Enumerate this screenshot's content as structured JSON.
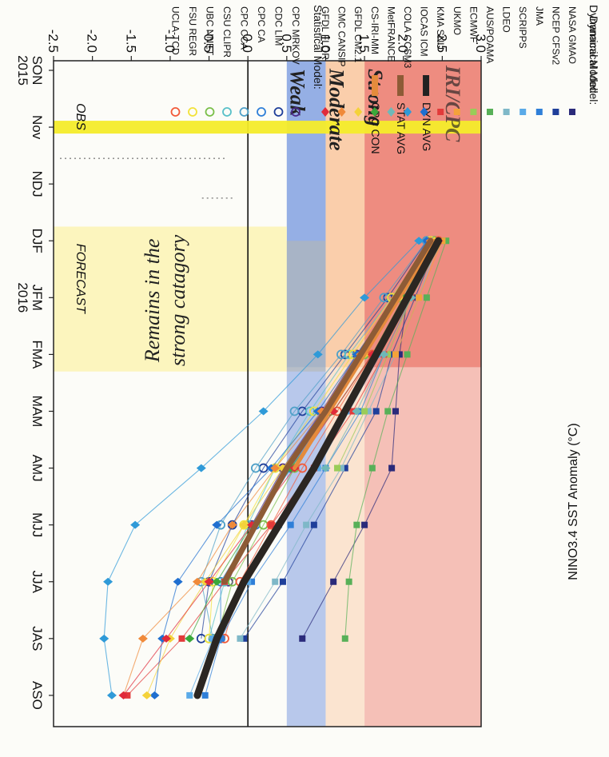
{
  "chart_data": {
    "type": "line",
    "ylabel": "NINO3.4 SST Anomaly (°C)",
    "x_ticks": [
      "SON",
      "Nov",
      "NDJ",
      "DJF",
      "JFM",
      "FMA",
      "MAM",
      "AMJ",
      "MJJ",
      "JJA",
      "JAS",
      "ASO"
    ],
    "year_labels": [
      {
        "x": "SON",
        "text": "2015"
      },
      {
        "x": "JFM",
        "text": "2016"
      }
    ],
    "ylim": [
      -2.5,
      3.0
    ],
    "y_ticks": [
      "3.0",
      "2.5",
      "2.0",
      "1.5",
      "1.0",
      "0.5",
      "0.0",
      "-0.5",
      "-1.0",
      "-1.5",
      "-2.0",
      "-2.5"
    ],
    "bands": [
      {
        "label": "Strong",
        "from": 1.5,
        "to": 3.0,
        "color": "#ec7f72"
      },
      {
        "label": "Moderate",
        "from": 1.0,
        "to": 1.5,
        "color": "#f9c9a2"
      },
      {
        "label": "Weak",
        "from": 0.5,
        "to": 1.0,
        "color": "#8aa6e2"
      }
    ],
    "obs_marker": {
      "x": "Nov",
      "label": "OBS"
    },
    "forecast_label": "FORECAST",
    "annotation": [
      "Remains in the",
      "strong catagory"
    ],
    "logo": "IRI/CPC",
    "avg_legend": [
      {
        "label": "DYN AVG",
        "color": "#222222"
      },
      {
        "label": "STAT AVG",
        "color": "#8d5b36"
      },
      {
        "label": "CPC CON",
        "color": "#e58b3c"
      }
    ],
    "dynamical_header": "Dynamical Model:",
    "statistical_header": "Statistical Model:",
    "dynamical_models": [
      {
        "name": "NASA GMAO",
        "color": "#2a2a7a",
        "marker": "square",
        "values": [
          null,
          null,
          null,
          2.35,
          2.05,
          1.95,
          1.9,
          1.85,
          1.5,
          1.1,
          0.7,
          null
        ]
      },
      {
        "name": "NCEP CFSv2",
        "color": "#1f3f9a",
        "marker": "square",
        "values": [
          null,
          null,
          null,
          2.45,
          2.15,
          1.85,
          1.65,
          1.25,
          0.85,
          0.45,
          -0.05,
          null
        ]
      },
      {
        "name": "JMA",
        "color": "#2f7fd8",
        "marker": "square",
        "values": [
          null,
          null,
          null,
          2.5,
          2.1,
          1.75,
          1.45,
          1.0,
          0.55,
          0.05,
          -0.35,
          -0.55
        ]
      },
      {
        "name": "SCRIPPS",
        "color": "#5aaae8",
        "marker": "square",
        "values": [
          null,
          null,
          null,
          2.4,
          2.0,
          1.7,
          1.3,
          0.9,
          0.4,
          0.0,
          -0.45,
          -0.75
        ]
      },
      {
        "name": "LDEO",
        "color": "#7fb8c8",
        "marker": "square",
        "values": [
          null,
          null,
          null,
          2.45,
          2.2,
          1.9,
          1.55,
          1.2,
          0.75,
          0.35,
          -0.1,
          null
        ]
      },
      {
        "name": "AUS/POAMA",
        "color": "#58b058",
        "marker": "square",
        "values": [
          null,
          null,
          null,
          2.55,
          2.3,
          2.05,
          1.8,
          1.6,
          1.4,
          1.3,
          1.25,
          null
        ]
      },
      {
        "name": "ECMWF",
        "color": "#9acc58",
        "marker": "square",
        "values": [
          null,
          null,
          null,
          2.5,
          2.1,
          1.8,
          1.5,
          1.15,
          null,
          null,
          null,
          null
        ]
      },
      {
        "name": "UKMO",
        "color": "#f4a23a",
        "marker": "square",
        "values": [
          null,
          null,
          null,
          2.5,
          2.2,
          1.9,
          null,
          null,
          null,
          null,
          null,
          null
        ]
      },
      {
        "name": "KMA SNU",
        "color": "#e23a3a",
        "marker": "square",
        "values": [
          null,
          null,
          null,
          2.45,
          2.1,
          1.75,
          1.35,
          0.85,
          0.3,
          -0.3,
          -0.85,
          -1.55
        ]
      },
      {
        "name": "IOCAS ICM",
        "color": "#1f6fd0",
        "marker": "diamond",
        "values": [
          null,
          null,
          null,
          2.3,
          1.9,
          1.4,
          0.9,
          0.3,
          -0.4,
          -0.9,
          -1.1,
          -1.2
        ]
      },
      {
        "name": "COLA CCSM3",
        "color": "#2f9ad8",
        "marker": "diamond",
        "values": [
          null,
          null,
          null,
          2.2,
          1.5,
          0.9,
          0.2,
          -0.6,
          -1.45,
          -1.8,
          -1.85,
          -1.75
        ]
      },
      {
        "name": "MetFRANCE",
        "color": "#6fb8b8",
        "marker": "diamond",
        "values": [
          null,
          null,
          null,
          2.45,
          2.1,
          1.75,
          1.4,
          1.0,
          null,
          null,
          null,
          null
        ]
      },
      {
        "name": "CS-IRI-MM",
        "color": "#3aa83a",
        "marker": "diamond",
        "values": [
          null,
          null,
          null,
          2.4,
          2.0,
          1.6,
          1.1,
          0.55,
          0.05,
          -0.4,
          -0.75,
          null
        ]
      },
      {
        "name": "GFDL CM2.1",
        "color": "#f4d23a",
        "marker": "diamond",
        "values": [
          null,
          null,
          null,
          2.4,
          1.95,
          1.5,
          1.0,
          0.45,
          -0.05,
          -0.55,
          -1.0,
          -1.3
        ]
      },
      {
        "name": "CMC CANSIP",
        "color": "#f08a3a",
        "marker": "diamond",
        "values": [
          null,
          null,
          null,
          2.35,
          1.9,
          1.45,
          0.95,
          0.35,
          -0.2,
          -0.65,
          -1.35,
          -1.6
        ]
      },
      {
        "name": "GFDL FLOR",
        "color": "#e02a3a",
        "marker": "diamond",
        "values": [
          null,
          null,
          null,
          2.45,
          2.05,
          1.6,
          1.1,
          0.6,
          0.05,
          -0.5,
          -1.05,
          -1.6
        ]
      }
    ],
    "statistical_models": [
      {
        "name": "CPC MRKOV",
        "color": "#4a2a8a",
        "marker": "circle",
        "values": [
          null,
          null,
          null,
          2.35,
          1.9,
          1.4,
          0.95,
          0.45,
          0.05,
          -0.25,
          null,
          null
        ]
      },
      {
        "name": "CDC LIM",
        "color": "#1f3f9a",
        "marker": "circle",
        "values": [
          null,
          null,
          null,
          2.3,
          1.8,
          1.25,
          0.7,
          0.2,
          -0.2,
          -0.5,
          -0.6,
          null
        ]
      },
      {
        "name": "CPC CA",
        "color": "#2f7fd8",
        "marker": "circle",
        "values": [
          null,
          null,
          null,
          2.4,
          1.95,
          1.5,
          1.05,
          0.55,
          0.1,
          -0.35,
          -0.35,
          null
        ]
      },
      {
        "name": "CPC CCA",
        "color": "#4fa0c8",
        "marker": "circle",
        "values": [
          null,
          null,
          null,
          2.3,
          1.75,
          1.2,
          0.6,
          0.1,
          -0.35,
          -0.6,
          -0.45,
          null
        ]
      },
      {
        "name": "CSU CLIPR",
        "color": "#58c0c8",
        "marker": "circle",
        "values": [
          null,
          null,
          null,
          2.35,
          1.85,
          1.3,
          0.8,
          0.35,
          0.0,
          -0.3,
          -0.5,
          null
        ]
      },
      {
        "name": "UBC NNET",
        "color": "#7abf4a",
        "marker": "circle",
        "values": [
          null,
          null,
          null,
          2.4,
          1.95,
          1.5,
          1.05,
          0.6,
          0.2,
          -0.2,
          -0.4,
          null
        ]
      },
      {
        "name": "FSU REGR",
        "color": "#f2e23a",
        "marker": "circle",
        "values": [
          null,
          null,
          null,
          2.35,
          1.85,
          1.35,
          0.85,
          0.35,
          -0.05,
          -0.45,
          -0.5,
          null
        ]
      },
      {
        "name": "UCLA-TCD",
        "color": "#f25a3a",
        "marker": "circle",
        "values": [
          null,
          null,
          null,
          2.45,
          2.0,
          1.6,
          1.15,
          0.7,
          0.3,
          -0.1,
          -0.3,
          null
        ]
      }
    ],
    "dyn_avg": [
      null,
      null,
      null,
      2.45,
      2.05,
      1.65,
      1.25,
      0.85,
      0.4,
      -0.05,
      -0.4,
      -0.65
    ],
    "stat_avg": [
      null,
      null,
      null,
      2.35,
      1.9,
      1.45,
      1.0,
      0.5,
      0.1,
      -0.3,
      null,
      null
    ],
    "cpc_con": [
      null,
      null,
      null,
      2.4,
      1.95,
      1.5,
      1.05,
      0.6,
      null,
      null,
      null,
      null
    ]
  }
}
